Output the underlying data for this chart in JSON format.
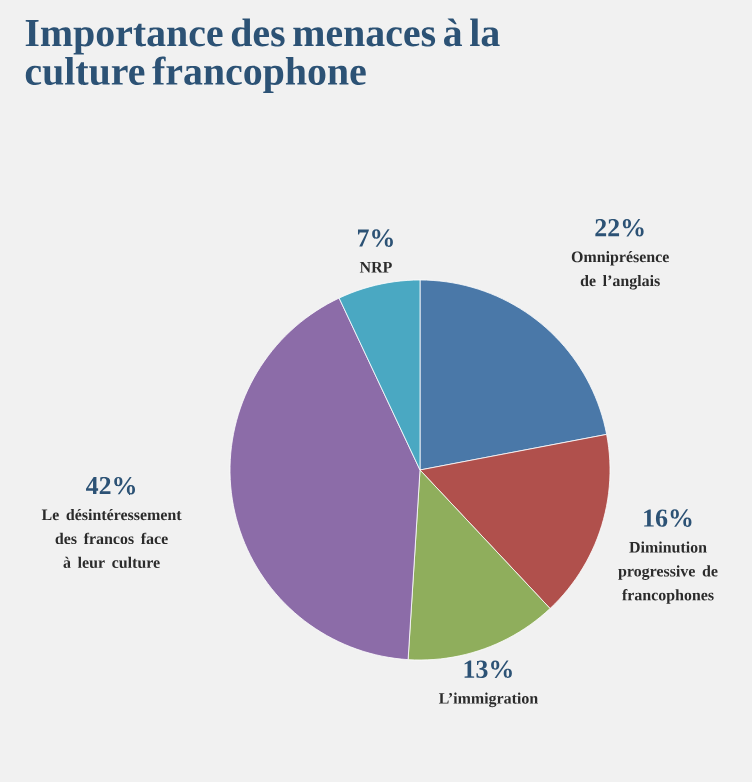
{
  "chart_data": {
    "type": "pie",
    "title": "Importance des menaces à la culture francophone",
    "categories": [
      "Omniprésence de l’anglais",
      "Diminution progressive de francophones",
      "L’immigration",
      "Le désintéressement des francos face à leur culture",
      "NRP"
    ],
    "values": [
      22,
      16,
      13,
      42,
      7
    ],
    "value_labels": [
      "22%",
      "16%",
      "13%",
      "42%",
      "7%"
    ],
    "colors": [
      "#4a78a8",
      "#b0504c",
      "#8fae5c",
      "#8c6ca8",
      "#4aa8c2"
    ]
  }
}
